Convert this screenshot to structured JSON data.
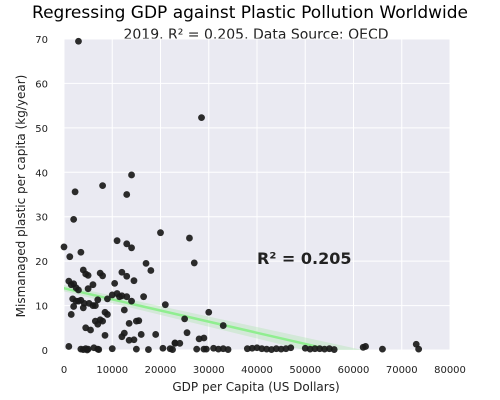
{
  "chart_data": {
    "type": "scatter",
    "title": "Regressing GDP against Plastic Pollution Worldwide",
    "subtitle": "2019. R² =  0.205. Data Source: OECD",
    "xlabel": "GDP per Capita (US Dollars)",
    "ylabel": "Mismanaged plastic per capita (kg/year)",
    "xlim": [
      0,
      80000
    ],
    "ylim": [
      0,
      70
    ],
    "xticks": [
      0,
      10000,
      20000,
      30000,
      40000,
      50000,
      60000,
      70000,
      80000
    ],
    "yticks": [
      0,
      10,
      20,
      30,
      40,
      50,
      60,
      70
    ],
    "grid": true,
    "annotation": {
      "text": "R² = 0.205",
      "x": 40000,
      "y": 20.5
    },
    "regression": {
      "x_start": -2000,
      "y_start": 14.4,
      "x_end": 75000,
      "y_end": -4.9
    },
    "colors": {
      "points": "#1a1a1a",
      "line": "#90ee90",
      "band": "#b8e6b8",
      "background": "#eaeaf2",
      "grid": "#ffffff"
    },
    "points": {
      "x": [
        3000,
        0,
        1000,
        1500,
        2000,
        2500,
        3000,
        3500,
        4000,
        4500,
        5000,
        1200,
        1800,
        2500,
        3500,
        4200,
        5200,
        6000,
        6500,
        7000,
        7500,
        8000,
        9000,
        1500,
        2000,
        3000,
        4000,
        5000,
        6000,
        7000,
        8000,
        9000,
        10000,
        11000,
        12000,
        13000,
        14000,
        4500,
        5500,
        6500,
        7500,
        8500,
        10500,
        11500,
        12500,
        13500,
        14500,
        15500,
        16500,
        11000,
        12000,
        13000,
        14000,
        15000,
        17000,
        18000,
        19000,
        20000,
        21000,
        22000,
        23000,
        24000,
        25000,
        26000,
        27000,
        28000,
        29000,
        30000,
        8000,
        13000,
        14000,
        2000,
        2300,
        1000,
        3500,
        4800,
        6200,
        7200,
        8500,
        10000,
        13000,
        14500,
        16000,
        17500,
        20500,
        25500,
        27500,
        28500,
        29500,
        33000,
        4000,
        4500,
        5000,
        7000,
        12000,
        15000,
        23000,
        22500,
        29000,
        31000,
        32000,
        33000,
        34000,
        38000,
        39000,
        40000,
        41000,
        42000,
        43000,
        44000,
        45000,
        46000,
        47000,
        50000,
        51000,
        52000,
        53000,
        54000,
        55000,
        56000,
        62000,
        62500,
        66000,
        73000,
        73500,
        12500,
        13500
      ],
      "y": [
        69.5,
        23.2,
        15.5,
        14.7,
        14.9,
        14.0,
        13.5,
        22.0,
        18.0,
        17.1,
        16.8,
        21.0,
        11.5,
        11.0,
        11.2,
        10.5,
        10.5,
        10.0,
        10.0,
        11.3,
        17.3,
        16.7,
        8.0,
        8.0,
        9.8,
        11.0,
        9.5,
        13.8,
        14.7,
        5.8,
        6.5,
        11.5,
        12.4,
        12.7,
        12.2,
        12.0,
        11.0,
        5.0,
        4.5,
        6.5,
        6.8,
        8.5,
        15.0,
        12.0,
        9.0,
        6.0,
        15.6,
        6.6,
        12.0,
        24.6,
        17.5,
        16.6,
        23.0,
        6.5,
        19.5,
        17.9,
        3.5,
        26.4,
        10.2,
        0.3,
        1.6,
        1.5,
        7.0,
        25.2,
        19.6,
        2.5,
        2.7,
        8.5,
        37.0,
        35.0,
        39.4,
        29.4,
        35.6,
        0.8,
        0.2,
        0.0,
        0.5,
        0.1,
        3.3,
        0.3,
        23.9,
        2.3,
        3.5,
        0.1,
        0.4,
        3.9,
        0.2,
        52.3,
        0.2,
        5.5,
        0.1,
        0.3,
        0.2,
        0.2,
        3.0,
        0.2,
        1.5,
        0.1,
        0.2,
        0.4,
        0.2,
        0.3,
        0.1,
        0.3,
        0.4,
        0.5,
        0.3,
        0.2,
        0.1,
        0.3,
        0.2,
        0.3,
        0.5,
        0.4,
        0.2,
        0.3,
        0.3,
        0.2,
        0.3,
        0.1,
        0.6,
        0.8,
        0.2,
        1.3,
        0.2,
        3.8,
        2.2
      ]
    }
  }
}
